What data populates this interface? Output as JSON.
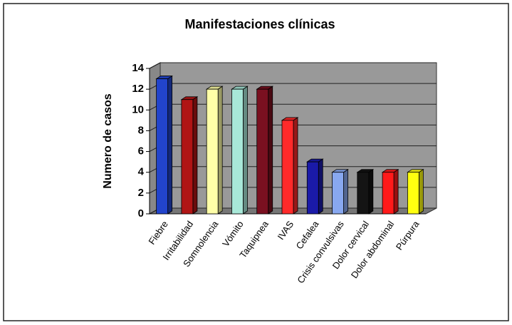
{
  "chart_data": {
    "type": "bar",
    "title": "Manifestaciones clínicas",
    "y_label": "Numero de casos",
    "categories": [
      "Fiebre",
      "Irritabilidad",
      "Somnolencia",
      "Vómito",
      "Taquipnea",
      "IVAS",
      "Cefalea",
      "Crisis convulsivas",
      "Dolor cervical",
      "Dolor abdominal",
      "Púrpura"
    ],
    "values": [
      13,
      11,
      12,
      12,
      12,
      9,
      5,
      4,
      4,
      4,
      4
    ],
    "colors": [
      "#2244cc",
      "#b01515",
      "#ffffa8",
      "#a8e8d8",
      "#7a1020",
      "#ff2a2a",
      "#1a1aa8",
      "#88a8f0",
      "#141414",
      "#ff1a1a",
      "#ffff10"
    ],
    "ylim": [
      0,
      14
    ],
    "yticks": [
      0,
      2,
      4,
      6,
      8,
      10,
      12,
      14
    ],
    "grid": true
  }
}
